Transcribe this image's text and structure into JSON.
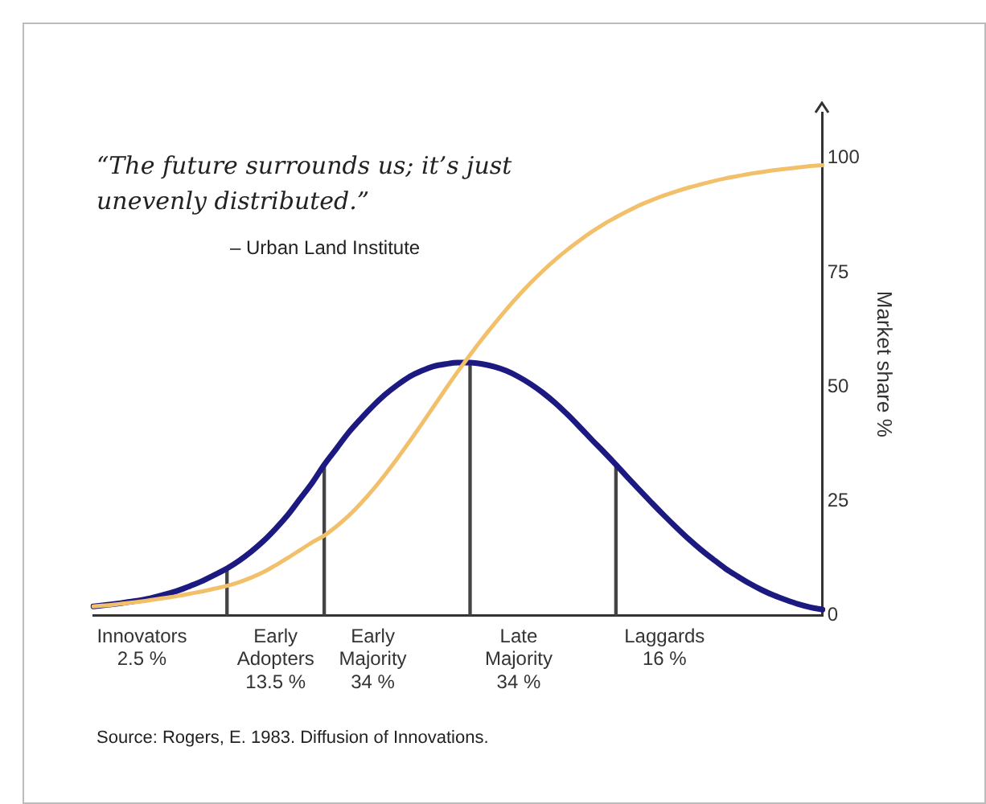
{
  "chart_data": {
    "type": "line",
    "ylabel": "Market share %",
    "annotations": [
      "“The future surrounds us; it’s just\nunevenly distributed.”",
      "– Urban Land Institute",
      "Source: Rogers, E. 1983. Diffusion of Innovations."
    ],
    "categories": [
      null,
      null,
      null,
      null,
      "Innovators\n2.5 %",
      null,
      null,
      null,
      null,
      null,
      null,
      null,
      null,
      null,
      null,
      "Early\nAdopters\n13.5 %",
      null,
      null,
      null,
      null,
      null,
      null,
      null,
      "Early\nMajority\n34 %",
      null,
      null,
      null,
      null,
      null,
      null,
      null,
      null,
      null,
      null,
      null,
      "Late\nMajority\n34 %",
      null,
      null,
      null,
      null,
      null,
      null,
      null,
      null,
      null,
      null,
      null,
      "Laggards\n16 %",
      null,
      null,
      null,
      null,
      null,
      null,
      null,
      null,
      null,
      null,
      null,
      null,
      null
    ],
    "series": [
      {
        "type": "bar",
        "color": "#444444",
        "values": [
          null,
          null,
          null,
          null,
          null,
          null,
          null,
          null,
          null,
          null,
          null,
          10.3,
          null,
          null,
          null,
          null,
          null,
          null,
          null,
          33,
          null,
          null,
          null,
          null,
          null,
          null,
          null,
          null,
          null,
          null,
          null,
          55.3,
          null,
          null,
          null,
          null,
          null,
          null,
          null,
          null,
          null,
          null,
          null,
          33,
          null,
          null,
          null,
          null,
          null,
          null,
          null,
          null,
          null,
          null,
          null,
          null,
          null,
          null,
          null,
          null,
          null
        ]
      },
      {
        "color": "#f2c06a",
        "values": [
          2,
          2.2,
          2.5,
          2.8,
          3.1,
          3.5,
          3.9,
          4.3,
          4.8,
          5.3,
          5.9,
          6.5,
          7.3,
          8.3,
          9.5,
          11,
          12.6,
          14.3,
          16,
          17.5,
          19.5,
          21.8,
          24.5,
          27.5,
          30.8,
          34.3,
          38,
          41.8,
          45.7,
          49.6,
          53.4,
          57,
          60.5,
          63.8,
          67,
          70,
          72.8,
          75.4,
          77.8,
          80,
          82,
          83.9,
          85.6,
          87.1,
          88.5,
          89.8,
          90.9,
          91.9,
          92.8,
          93.6,
          94.3,
          95,
          95.6,
          96.1,
          96.6,
          97,
          97.4,
          97.7,
          98,
          98.3,
          98.5
        ]
      },
      {
        "color": "#1c1a80",
        "values": [
          2,
          2.3,
          2.6,
          3,
          3.4,
          4,
          4.7,
          5.5,
          6.5,
          7.6,
          8.9,
          10.3,
          12,
          14,
          16.3,
          19,
          22,
          25.5,
          29,
          33,
          36.5,
          40,
          43,
          45.8,
          48.3,
          50.4,
          52.2,
          53.5,
          54.5,
          55,
          55.3,
          55.3,
          55,
          54.4,
          53.5,
          52.2,
          50.6,
          48.7,
          46.5,
          44,
          41.3,
          38.5,
          35.8,
          33,
          30.1,
          27.3,
          24.5,
          21.8,
          19.2,
          16.7,
          14.4,
          12.3,
          10.3,
          8.6,
          7,
          5.6,
          4.4,
          3.4,
          2.5,
          1.8,
          1.3
        ]
      }
    ],
    "ylim": [
      0,
      110
    ],
    "yticks": [
      0,
      25,
      50,
      75,
      100
    ],
    "grid": false,
    "legend": false,
    "marker": "none",
    "line_style": "solid"
  }
}
